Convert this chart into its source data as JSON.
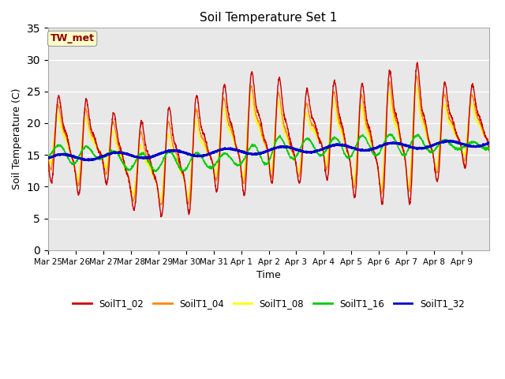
{
  "title": "Soil Temperature Set 1",
  "ylabel": "Soil Temperature (C)",
  "xlabel": "Time",
  "ylim": [
    0,
    35
  ],
  "annotation": "TW_met",
  "annotation_color": "#8B0000",
  "annotation_bg": "#FFFFCC",
  "bg_color": "#E8E8E8",
  "grid_color": "#FFFFFF",
  "line_colors": {
    "SoilT1_02": "#CC0000",
    "SoilT1_04": "#FF8800",
    "SoilT1_08": "#FFFF00",
    "SoilT1_16": "#00CC00",
    "SoilT1_32": "#0000CC"
  },
  "x_tick_labels": [
    "Mar 25",
    "Mar 26",
    "Mar 27",
    "Mar 28",
    "Mar 29",
    "Mar 30",
    "Mar 31",
    "Apr 1",
    "Apr 2",
    "Apr 3",
    "Apr 4",
    "Apr 5",
    "Apr 6",
    "Apr 7",
    "Apr 8",
    "Apr 9"
  ],
  "num_days": 16,
  "pts_per_day": 144
}
